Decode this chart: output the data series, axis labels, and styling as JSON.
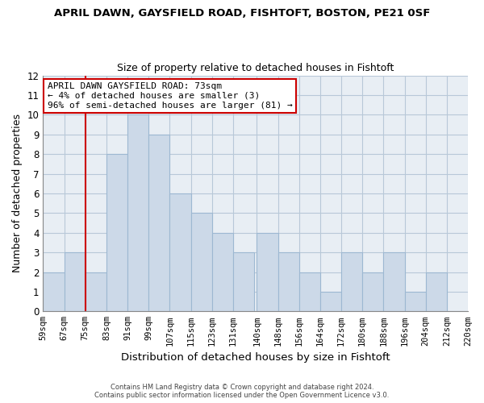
{
  "title": "APRIL DAWN, GAYSFIELD ROAD, FISHTOFT, BOSTON, PE21 0SF",
  "subtitle": "Size of property relative to detached houses in Fishtoft",
  "xlabel": "Distribution of detached houses by size in Fishtoft",
  "ylabel": "Number of detached properties",
  "bar_color": "#ccd9e8",
  "bar_edge_color": "#9db8d2",
  "plot_bg_color": "#e8eef4",
  "bin_edges": [
    59,
    67,
    75,
    83,
    91,
    99,
    107,
    115,
    123,
    131,
    140,
    148,
    156,
    164,
    172,
    180,
    188,
    196,
    204,
    212,
    220
  ],
  "bin_labels": [
    "59sqm",
    "67sqm",
    "75sqm",
    "83sqm",
    "91sqm",
    "99sqm",
    "107sqm",
    "115sqm",
    "123sqm",
    "131sqm",
    "140sqm",
    "148sqm",
    "156sqm",
    "164sqm",
    "172sqm",
    "180sqm",
    "188sqm",
    "196sqm",
    "204sqm",
    "212sqm",
    "220sqm"
  ],
  "counts": [
    2,
    3,
    2,
    8,
    10,
    9,
    6,
    5,
    4,
    3,
    4,
    3,
    2,
    1,
    3,
    2,
    3,
    1,
    2,
    0
  ],
  "ylim": [
    0,
    12
  ],
  "yticks": [
    0,
    1,
    2,
    3,
    4,
    5,
    6,
    7,
    8,
    9,
    10,
    11,
    12
  ],
  "property_line_x": 75,
  "property_line_color": "#cc0000",
  "annotation_title": "APRIL DAWN GAYSFIELD ROAD: 73sqm",
  "annotation_line1": "← 4% of detached houses are smaller (3)",
  "annotation_line2": "96% of semi-detached houses are larger (81) →",
  "annotation_box_color": "#ffffff",
  "annotation_box_edge": "#cc0000",
  "footer_line1": "Contains HM Land Registry data © Crown copyright and database right 2024.",
  "footer_line2": "Contains public sector information licensed under the Open Government Licence v3.0.",
  "background_color": "#ffffff",
  "grid_color": "#b8c8d8"
}
